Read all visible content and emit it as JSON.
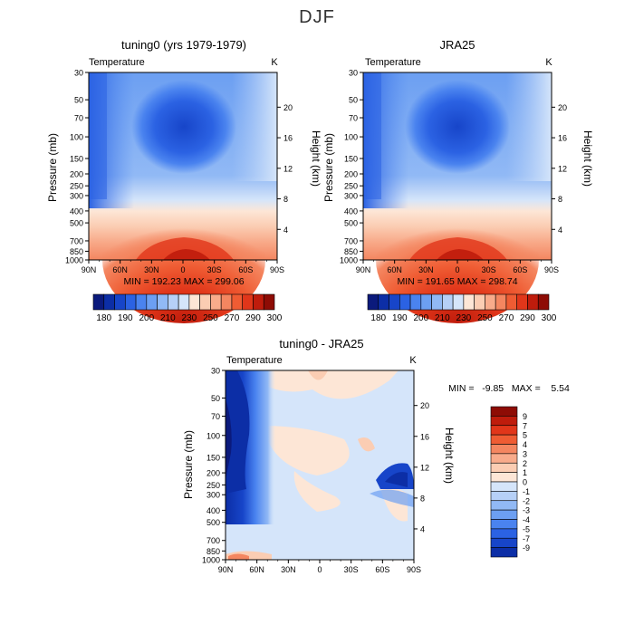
{
  "title": "DJF",
  "chart_data": [
    {
      "type": "heatmap",
      "title": "tuning0 (yrs 1979-1979)",
      "subtitle_left": "Temperature",
      "subtitle_right": "K",
      "xlabel": "",
      "ylabel": "Pressure (mb)",
      "ylabel_right": "Height (km)",
      "x_ticks": [
        "90N",
        "60N",
        "30N",
        "0",
        "30S",
        "60S",
        "90S"
      ],
      "y_ticks": [
        "30",
        "50",
        "70",
        "100",
        "150",
        "200",
        "250",
        "300",
        "400",
        "500",
        "700",
        "850",
        "1000"
      ],
      "y_right_ticks": [
        "20",
        "16",
        "12",
        "8",
        "4"
      ],
      "stats_text": "MIN = 192.23   MAX = 299.06",
      "min": 192.23,
      "max": 299.06,
      "colorbar_labels": [
        "180",
        "190",
        "200",
        "210",
        "230",
        "250",
        "270",
        "290",
        "300"
      ],
      "colorbar_colors": [
        "#0b1a7c",
        "#0c2ea6",
        "#1745c9",
        "#2b62e3",
        "#4a83ef",
        "#6c9ff2",
        "#91b9f5",
        "#b6d0f7",
        "#d5e5fa",
        "#fde6d6",
        "#fbcdb3",
        "#f8ab8b",
        "#f48660",
        "#ef5c33",
        "#e1361a",
        "#bf1c0c",
        "#8e0c05"
      ]
    },
    {
      "type": "heatmap",
      "title": "JRA25",
      "subtitle_left": "Temperature",
      "subtitle_right": "K",
      "xlabel": "",
      "ylabel": "Pressure (mb)",
      "ylabel_right": "Height (km)",
      "x_ticks": [
        "90N",
        "60N",
        "30N",
        "0",
        "30S",
        "60S",
        "90S"
      ],
      "y_ticks": [
        "30",
        "50",
        "70",
        "100",
        "150",
        "200",
        "250",
        "300",
        "400",
        "500",
        "700",
        "850",
        "1000"
      ],
      "y_right_ticks": [
        "20",
        "16",
        "12",
        "8",
        "4"
      ],
      "stats_text": "MIN = 191.65   MAX = 298.74",
      "min": 191.65,
      "max": 298.74,
      "colorbar_labels": [
        "180",
        "190",
        "200",
        "210",
        "230",
        "250",
        "270",
        "290",
        "300"
      ],
      "colorbar_colors": [
        "#0b1a7c",
        "#0c2ea6",
        "#1745c9",
        "#2b62e3",
        "#4a83ef",
        "#6c9ff2",
        "#91b9f5",
        "#b6d0f7",
        "#d5e5fa",
        "#fde6d6",
        "#fbcdb3",
        "#f8ab8b",
        "#f48660",
        "#ef5c33",
        "#e1361a",
        "#bf1c0c",
        "#8e0c05"
      ]
    },
    {
      "type": "heatmap",
      "title": "tuning0 - JRA25",
      "subtitle_left": "Temperature",
      "subtitle_right": "K",
      "xlabel": "",
      "ylabel": "Pressure (mb)",
      "ylabel_right": "Height (km)",
      "x_ticks": [
        "90N",
        "60N",
        "30N",
        "0",
        "30S",
        "60S",
        "90S"
      ],
      "y_ticks": [
        "30",
        "50",
        "70",
        "100",
        "150",
        "200",
        "250",
        "300",
        "400",
        "500",
        "700",
        "850",
        "1000"
      ],
      "y_right_ticks": [
        "20",
        "16",
        "12",
        "8",
        "4"
      ],
      "stats_text": "MIN =   -9.85   MAX =    5.54",
      "min": -9.85,
      "max": 5.54,
      "colorbar_labels": [
        "9",
        "7",
        "5",
        "4",
        "3",
        "2",
        "1",
        "0",
        "-1",
        "-2",
        "-3",
        "-4",
        "-5",
        "-7",
        "-9"
      ],
      "colorbar_colors": [
        "#8e0c05",
        "#bf1c0c",
        "#e1361a",
        "#ef5c33",
        "#f48660",
        "#f8ab8b",
        "#fbcdb3",
        "#fde6d6",
        "#d5e5fa",
        "#b6d0f7",
        "#91b9f5",
        "#6c9ff2",
        "#4a83ef",
        "#2b62e3",
        "#1745c9",
        "#0c2ea6"
      ]
    }
  ]
}
